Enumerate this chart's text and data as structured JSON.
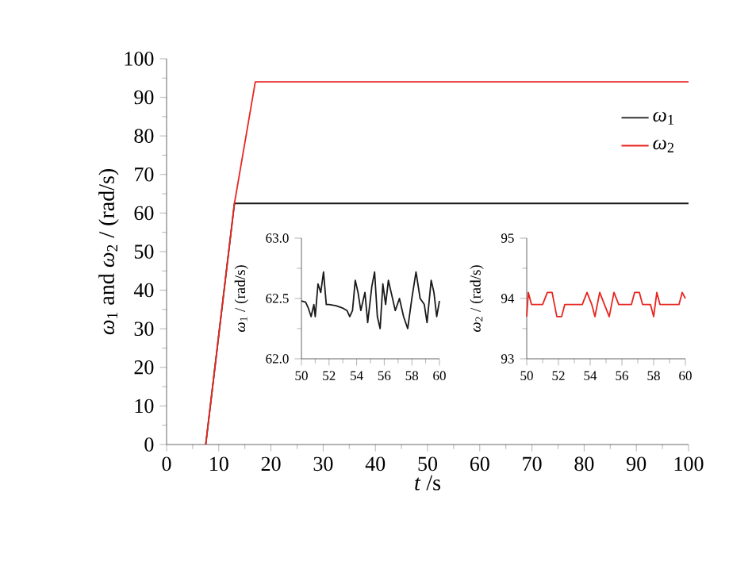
{
  "chart_data": [
    {
      "type": "line",
      "xlabel": "*t* /s",
      "ylabel": "*ω*$_{1}$ and *ω*$_{2}$ / (rad/s)",
      "xlim": [
        0,
        100
      ],
      "ylim": [
        0,
        100
      ],
      "xticks": [
        0,
        10,
        20,
        30,
        40,
        50,
        60,
        70,
        80,
        90,
        100
      ],
      "yticks": [
        0,
        10,
        20,
        30,
        40,
        50,
        60,
        70,
        80,
        90,
        100
      ],
      "legend": "top right",
      "grid": false,
      "series": [
        {
          "name": "*ω*$_{1}$",
          "color": "#1a1a1a",
          "x": [
            7.5,
            13,
            100
          ],
          "values": [
            0,
            62.5,
            62.5
          ]
        },
        {
          "name": "*ω*$_{2}$",
          "color": "#e8261f",
          "x": [
            7.5,
            13,
            17,
            100
          ],
          "values": [
            0,
            62.5,
            94,
            94
          ]
        }
      ]
    },
    {
      "type": "line",
      "ylabel": "*ω*$_{1}$ / (rad/s)",
      "xlim": [
        50,
        60
      ],
      "ylim": [
        62,
        63
      ],
      "xticks": [
        50,
        52,
        54,
        56,
        58,
        60
      ],
      "yticks": [
        {
          "value": 62,
          "label": "62.0"
        },
        62.5,
        {
          "value": 63,
          "label": "63.0"
        }
      ],
      "grid": false,
      "series": [
        {
          "color": "#1a1a1a",
          "x": [
            50,
            50.3,
            50.5,
            50.7,
            50.9,
            51.0,
            51.2,
            51.4,
            51.6,
            51.8,
            52.0,
            52.5,
            53.0,
            53.3,
            53.5,
            53.7,
            53.9,
            54.1,
            54.3,
            54.6,
            54.8,
            55.1,
            55.3,
            55.5,
            55.7,
            55.9,
            56.1,
            56.3,
            56.5,
            56.8,
            57.1,
            57.4,
            57.7,
            58.0,
            58.3,
            58.6,
            58.9,
            59.1,
            59.4,
            59.6,
            59.8,
            60
          ],
          "values": [
            62.48,
            62.47,
            62.42,
            62.35,
            62.45,
            62.35,
            62.62,
            62.55,
            62.72,
            62.45,
            62.45,
            62.44,
            62.42,
            62.4,
            62.35,
            62.4,
            62.65,
            62.55,
            62.4,
            62.55,
            62.3,
            62.6,
            62.72,
            62.35,
            62.25,
            62.62,
            62.45,
            62.65,
            62.55,
            62.4,
            62.5,
            62.35,
            62.25,
            62.5,
            62.72,
            62.5,
            62.45,
            62.3,
            62.65,
            62.55,
            62.35,
            62.48
          ]
        }
      ]
    },
    {
      "type": "line",
      "ylabel": "*ω*$_{2}$ / (rad/s)",
      "xlim": [
        50,
        60
      ],
      "ylim": [
        93,
        95
      ],
      "xticks": [
        50,
        52,
        54,
        56,
        58,
        60
      ],
      "yticks": [
        93,
        94,
        95
      ],
      "grid": false,
      "series": [
        {
          "color": "#e8261f",
          "x": [
            50,
            50.1,
            50.3,
            51.0,
            51.3,
            51.6,
            51.9,
            52.2,
            52.4,
            53.5,
            53.8,
            54.1,
            54.3,
            54.6,
            54.9,
            55.2,
            55.5,
            55.8,
            56.6,
            56.8,
            57.1,
            57.3,
            57.8,
            58.0,
            58.2,
            58.4,
            59.6,
            59.8,
            60
          ],
          "values": [
            93.7,
            94.1,
            93.9,
            93.9,
            94.1,
            94.1,
            93.7,
            93.7,
            93.9,
            93.9,
            94.1,
            93.9,
            93.7,
            94.1,
            93.9,
            93.7,
            94.1,
            93.9,
            93.9,
            94.1,
            94.1,
            93.9,
            93.9,
            93.7,
            94.1,
            93.9,
            93.9,
            94.1,
            94.0
          ]
        }
      ]
    }
  ]
}
